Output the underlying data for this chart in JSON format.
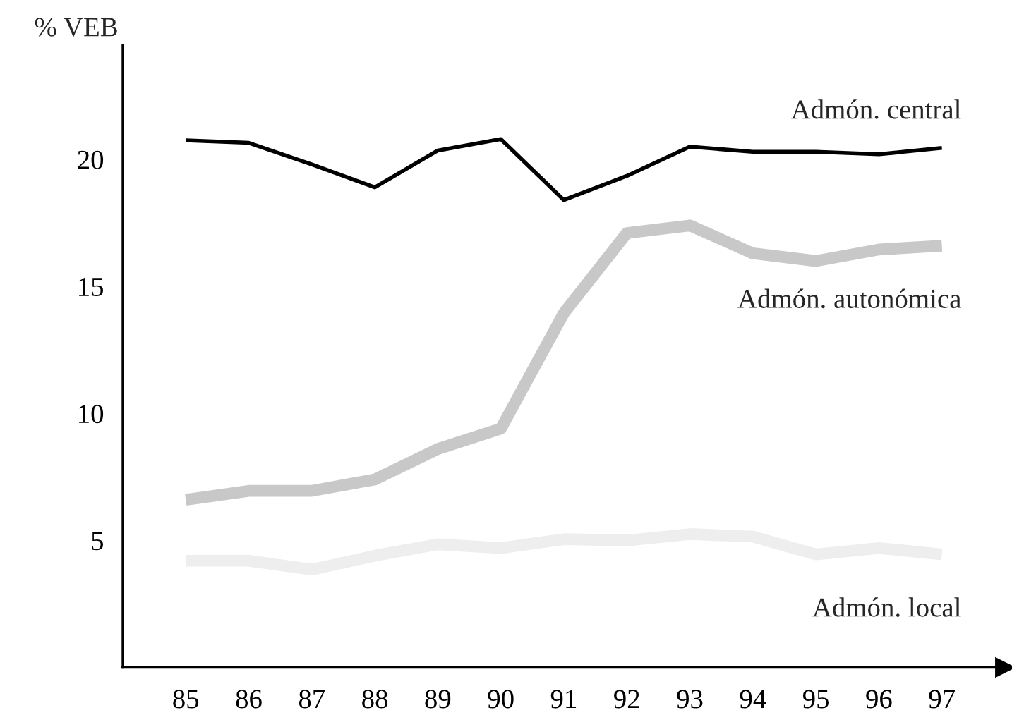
{
  "chart_data": {
    "type": "line",
    "ylabel": "% VEB",
    "x": [
      85,
      86,
      87,
      88,
      89,
      90,
      91,
      92,
      93,
      94,
      95,
      96,
      97
    ],
    "xlim": [
      84,
      98
    ],
    "xticks": [
      85,
      86,
      87,
      88,
      89,
      90,
      91,
      92,
      93,
      94,
      95,
      96,
      97
    ],
    "ylim": [
      0,
      24.5
    ],
    "yticks": [
      5,
      10,
      15,
      20
    ],
    "grid": false,
    "legend": false,
    "line_style": "solid",
    "marker": "none",
    "series": [
      {
        "name": "Admón. central",
        "color": "#000000",
        "values": [
          20.75,
          20.65,
          19.8,
          18.9,
          20.35,
          20.8,
          18.4,
          19.35,
          20.5,
          20.3,
          20.3,
          20.2,
          20.45
        ]
      },
      {
        "name": "Admón. autonómica",
        "color": "#c8c8c8",
        "values": [
          6.6,
          6.95,
          6.95,
          7.4,
          8.6,
          9.4,
          13.95,
          17.1,
          17.4,
          16.3,
          16.0,
          16.45,
          16.6
        ]
      },
      {
        "name": "Admón. local",
        "color": "#eeeeee",
        "values": [
          4.2,
          4.2,
          3.85,
          4.4,
          4.85,
          4.7,
          5.05,
          5.0,
          5.25,
          5.15,
          4.45,
          4.7,
          4.45
        ]
      }
    ]
  }
}
